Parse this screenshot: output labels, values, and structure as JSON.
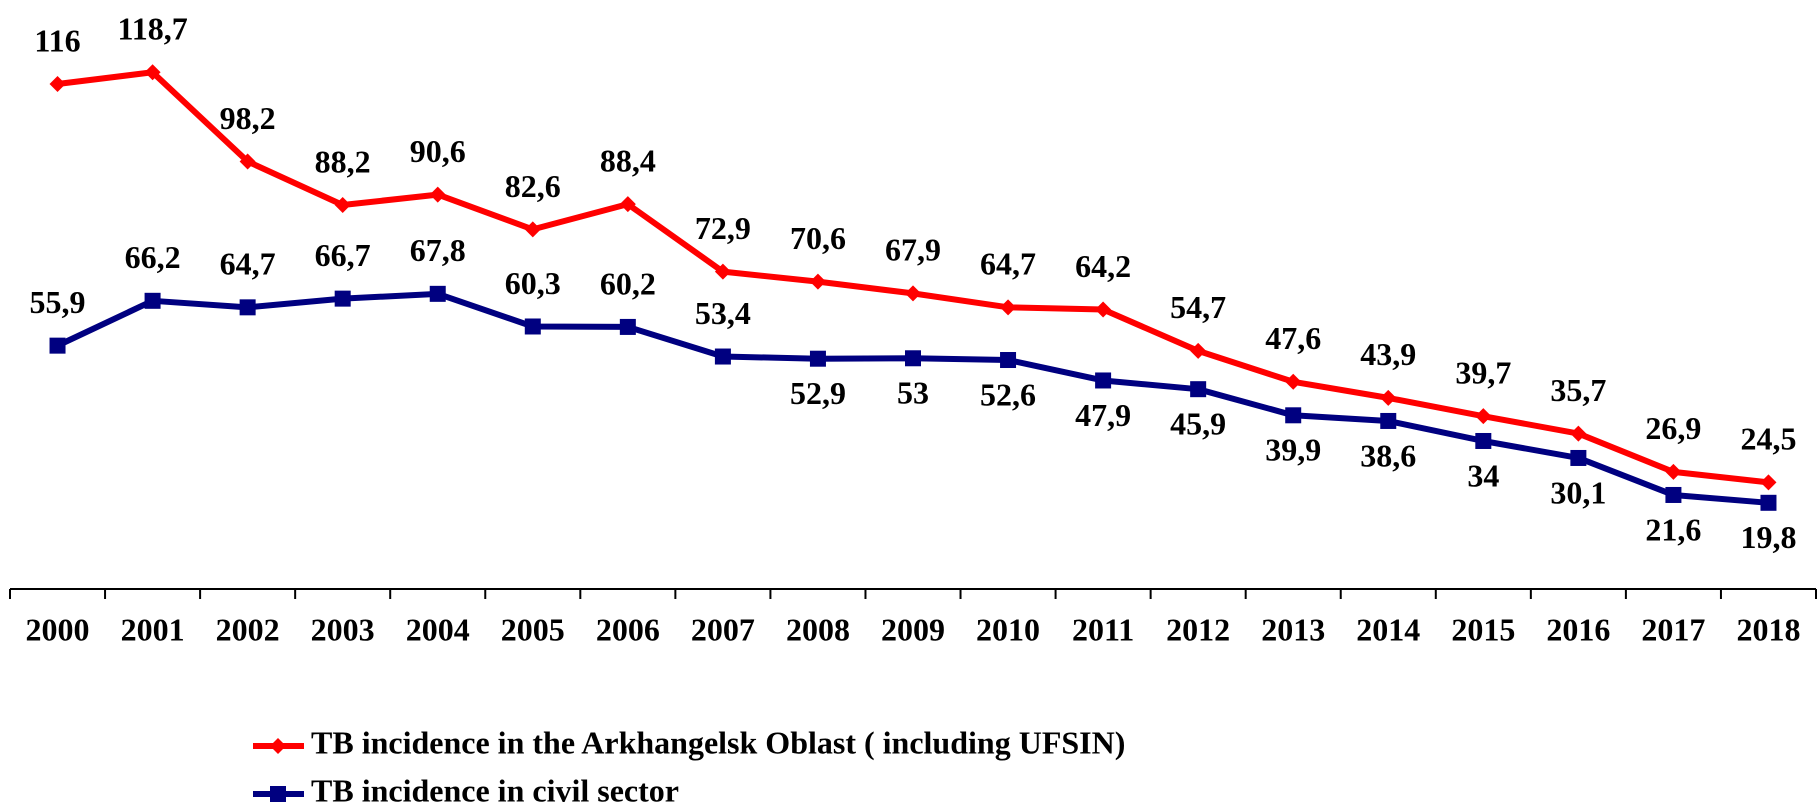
{
  "chart_data": {
    "type": "line",
    "categories": [
      "2000",
      "2001",
      "2002",
      "2003",
      "2004",
      "2005",
      "2006",
      "2007",
      "2008",
      "2009",
      "2010",
      "2011",
      "2012",
      "2013",
      "2014",
      "2015",
      "2016",
      "2017",
      "2018"
    ],
    "series": [
      {
        "name": "TB incidence in the Arkhangelsk Oblast ( including UFSIN)",
        "color": "#ff0000",
        "marker": "diamond",
        "values": [
          116,
          118.7,
          98.2,
          88.2,
          90.6,
          82.6,
          88.4,
          72.9,
          70.6,
          67.9,
          64.7,
          64.2,
          54.7,
          47.6,
          43.9,
          39.7,
          35.7,
          26.9,
          24.5
        ],
        "value_labels": [
          "116",
          "118,7",
          "98,2",
          "88,2",
          "90,6",
          "82,6",
          "88,4",
          "72,9",
          "70,6",
          "67,9",
          "64,7",
          "64,2",
          "54,7",
          "47,6",
          "43,9",
          "39,7",
          "35,7",
          "26,9",
          "24,5"
        ]
      },
      {
        "name": "TB incidence in civil sector",
        "color": "#000080",
        "marker": "square",
        "values": [
          55.9,
          66.2,
          64.7,
          66.7,
          67.8,
          60.3,
          60.2,
          53.4,
          52.9,
          53,
          52.6,
          47.9,
          45.9,
          39.9,
          38.6,
          34,
          30.1,
          21.6,
          19.8
        ],
        "value_labels": [
          "55,9",
          "66,2",
          "64,7",
          "66,7",
          "67,8",
          "60,3",
          "60,2",
          "53,4",
          "52,9",
          "53",
          "52,6",
          "47,9",
          "45,9",
          "39,9",
          "38,6",
          "34",
          "30,1",
          "21,6",
          "19,8"
        ]
      }
    ],
    "ylim": [
      0,
      133
    ],
    "legend": "bottom"
  }
}
